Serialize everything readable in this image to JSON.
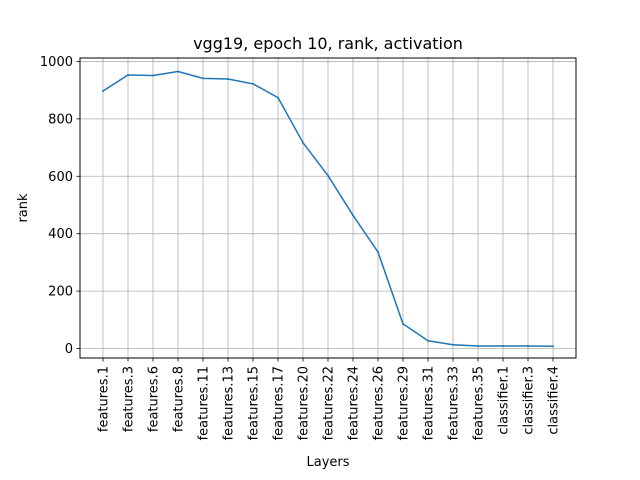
{
  "chart_data": {
    "type": "line",
    "title": "vgg19, epoch 10, rank, activation",
    "xlabel": "Layers",
    "ylabel": "rank",
    "categories": [
      "features.1",
      "features.3",
      "features.6",
      "features.8",
      "features.11",
      "features.13",
      "features.15",
      "features.17",
      "features.20",
      "features.22",
      "features.24",
      "features.26",
      "features.29",
      "features.31",
      "features.33",
      "features.35",
      "classifier.1",
      "classifier.3",
      "classifier.4"
    ],
    "series": [
      {
        "values": [
          897,
          953,
          951,
          965,
          941,
          939,
          922,
          874,
          717,
          602,
          464,
          336,
          86,
          27,
          13,
          9,
          9,
          9,
          8
        ]
      }
    ],
    "ylim": [
      -33,
      1012
    ],
    "yticks": [
      0,
      200,
      400,
      600,
      800,
      1000
    ],
    "grid": true,
    "line_color": "#1f77b4"
  }
}
